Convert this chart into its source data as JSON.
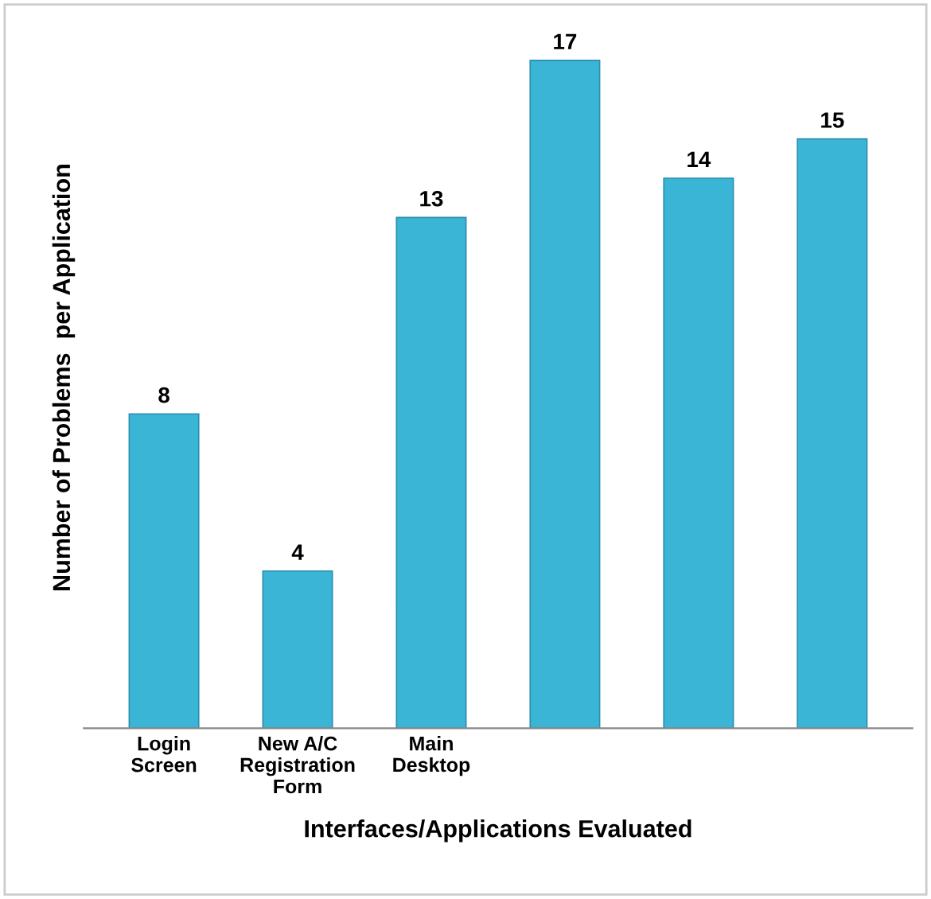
{
  "chart_data": {
    "type": "bar",
    "categories": [
      "Login\nScreen",
      "New A/C\nRegistration\nForm",
      "Main\nDesktop",
      null,
      null,
      null
    ],
    "values": [
      8,
      4,
      13,
      17,
      14,
      15
    ],
    "color": "#3bb5d6",
    "xlabel": "Interfaces/Applications Evaluated",
    "ylabel": "Number of Problems  per Application",
    "tick_labels": "x",
    "data_labels": true,
    "grid": false,
    "legend": false
  }
}
